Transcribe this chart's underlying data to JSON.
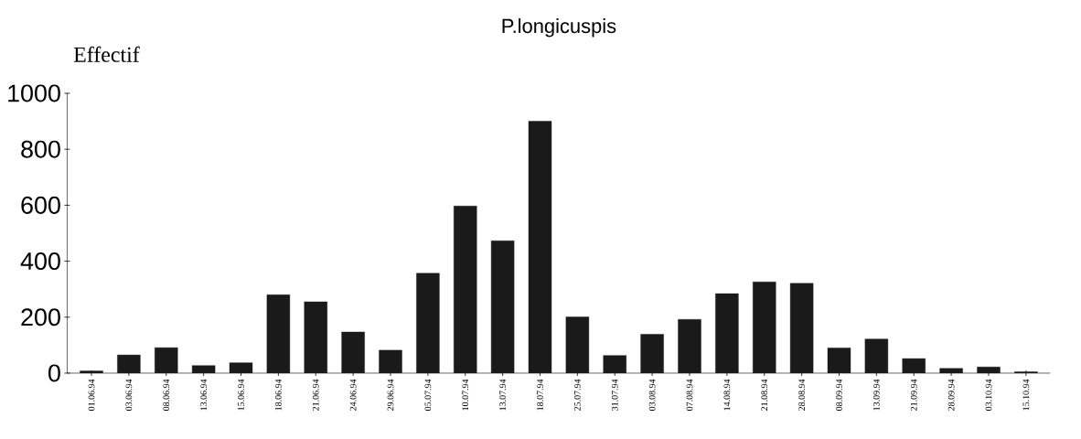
{
  "chart_data": {
    "type": "bar",
    "title": "P.longicuspis",
    "ylabel": "Effectif",
    "categories": [
      "01.06.94",
      "03.06.94",
      "08.06.94",
      "13.06.94",
      "15.06.94",
      "18.06.94",
      "21.06.94",
      "24.06.94",
      "29.06.94",
      "05.07.94",
      "10.07.94",
      "13.07.94",
      "18.07.94",
      "25.07.94",
      "31.07.94",
      "03.08.94",
      "07.08.94",
      "14.08.94",
      "21.08.94",
      "28.08.94",
      "08.09.94",
      "13.09.94",
      "21.09.94",
      "28.09.94",
      "03.10.94",
      "15.10.94"
    ],
    "values": [
      8,
      65,
      91,
      27,
      37,
      280,
      255,
      147,
      82,
      357,
      597,
      473,
      900,
      201,
      63,
      139,
      192,
      284,
      326,
      321,
      90,
      122,
      52,
      17,
      22,
      5
    ],
    "color": "#1a1a1a",
    "ylim": [
      0,
      1000
    ],
    "yticks": [
      0,
      200,
      400,
      600,
      800,
      1000
    ],
    "grid": false
  }
}
